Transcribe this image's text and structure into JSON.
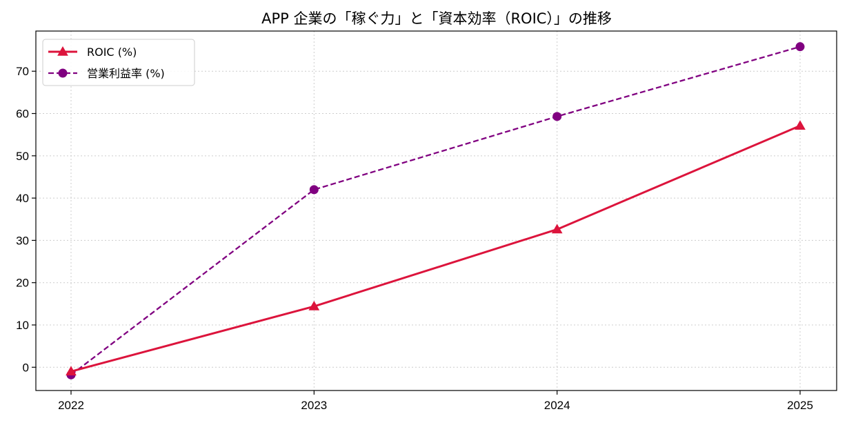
{
  "chart_data": {
    "type": "line",
    "title": "APP 企業の「稼ぐ力」と「資本効率（ROIC）」の推移",
    "xlabel": "",
    "ylabel": "",
    "categories": [
      "2022",
      "2023",
      "2024",
      "2025"
    ],
    "ylim": [
      -5.5,
      79.5
    ],
    "yticks": [
      0,
      10,
      20,
      30,
      40,
      50,
      60,
      70
    ],
    "grid": true,
    "legend_position": "top-left",
    "series": [
      {
        "name": "ROIC (%)",
        "values": [
          -1.0,
          14.4,
          32.6,
          57.1
        ],
        "color": "#dc143c",
        "line_style": "solid",
        "marker": "triangle"
      },
      {
        "name": "営業利益率 (%)",
        "values": [
          -1.8,
          42.0,
          59.3,
          75.8
        ],
        "color": "#800080",
        "line_style": "dashed",
        "marker": "circle"
      }
    ]
  }
}
